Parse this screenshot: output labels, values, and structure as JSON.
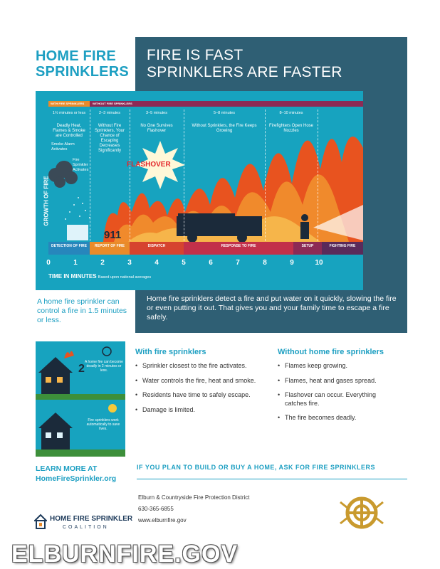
{
  "header": {
    "title_left": [
      "HOME FIRE",
      "SPRINKLERS"
    ],
    "title_right": [
      "FIRE IS FAST",
      "SPRINKLERS ARE FASTER"
    ],
    "accent": "#1d9fc2",
    "panel": "#2f5f74"
  },
  "infographic": {
    "bar_with": "WITH FIRE SPRINKLERS",
    "bar_without": "WITHOUT FIRE SPRINKLERS",
    "stages": [
      {
        "time": "1½ minutes or less",
        "desc": "Deadly Heat, Flames & Smoke are Controlled"
      },
      {
        "time": "2–3 minutes",
        "desc": "Without Fire Sprinklers, Your Chance of Escaping Decreases Significantly"
      },
      {
        "time": "3–5 minutes",
        "desc": "No One Survives Flashover"
      },
      {
        "time": "5–8 minutes",
        "desc": "Without Sprinklers, the Fire Keeps Growing"
      },
      {
        "time": "8–10 minutes",
        "desc": "Firefighters Open Hose Nozzles"
      }
    ],
    "smoke_alarm": "Smoke Alarm Activates",
    "sprinkler_activates": "Fire Sprinkler Activates",
    "flashover": "FLASHOVER",
    "nine_one_one": "911",
    "growth": "GROWTH OF FIRE",
    "timeline": [
      "DETECTION OF FIRE",
      "REPORT OF FIRE",
      "DISPATCH",
      "RESPONSE TO FIRE",
      "SETUP",
      "FIGHTING FIRE"
    ],
    "ticks": [
      "0",
      "1",
      "2",
      "3",
      "4",
      "5",
      "6",
      "7",
      "8",
      "9",
      "10"
    ],
    "time_label": "TIME IN MINUTES",
    "time_note": "Based upon national averages"
  },
  "notes": {
    "left": "A home fire sprinkler can control a fire in 1.5 minutes or less.",
    "right": "Home fire sprinklers detect a fire and put water on it quickly, slowing the fire or even putting it out. That gives you and your family time to escape a fire safely."
  },
  "mini": {
    "text1": "A home fire can become deadly in 2 minutes or less.",
    "number": "2",
    "text2": "Fire sprinklers work automatically to save lives."
  },
  "with": {
    "title": "With fire sprinklers",
    "items": [
      "Sprinkler closest to the fire activates.",
      "Water controls the fire, heat and smoke.",
      "Residents have time to safely escape.",
      "Damage is limited."
    ]
  },
  "without": {
    "title": "Without home fire sprinklers",
    "items": [
      "Flames keep growing.",
      "Flames, heat and gases spread.",
      "Flashover can occur. Everything catches fire.",
      "The fire becomes deadly."
    ]
  },
  "learn": {
    "line1": "LEARN MORE AT",
    "line2": "HomeFireSprinkler.org"
  },
  "cta": "IF YOU PLAN TO BUILD OR BUY A HOME, ASK FOR FIRE SPRINKLERS",
  "contact": {
    "name": "Elburn & Countryside Fire Protection District",
    "phone": "630-365-6855",
    "web": "www.elburnfire.gov"
  },
  "logo": {
    "line1": "HOME FIRE SPRINKLER",
    "line2": "COALITION"
  },
  "watermark": "ELBURNFIRE.GOV"
}
